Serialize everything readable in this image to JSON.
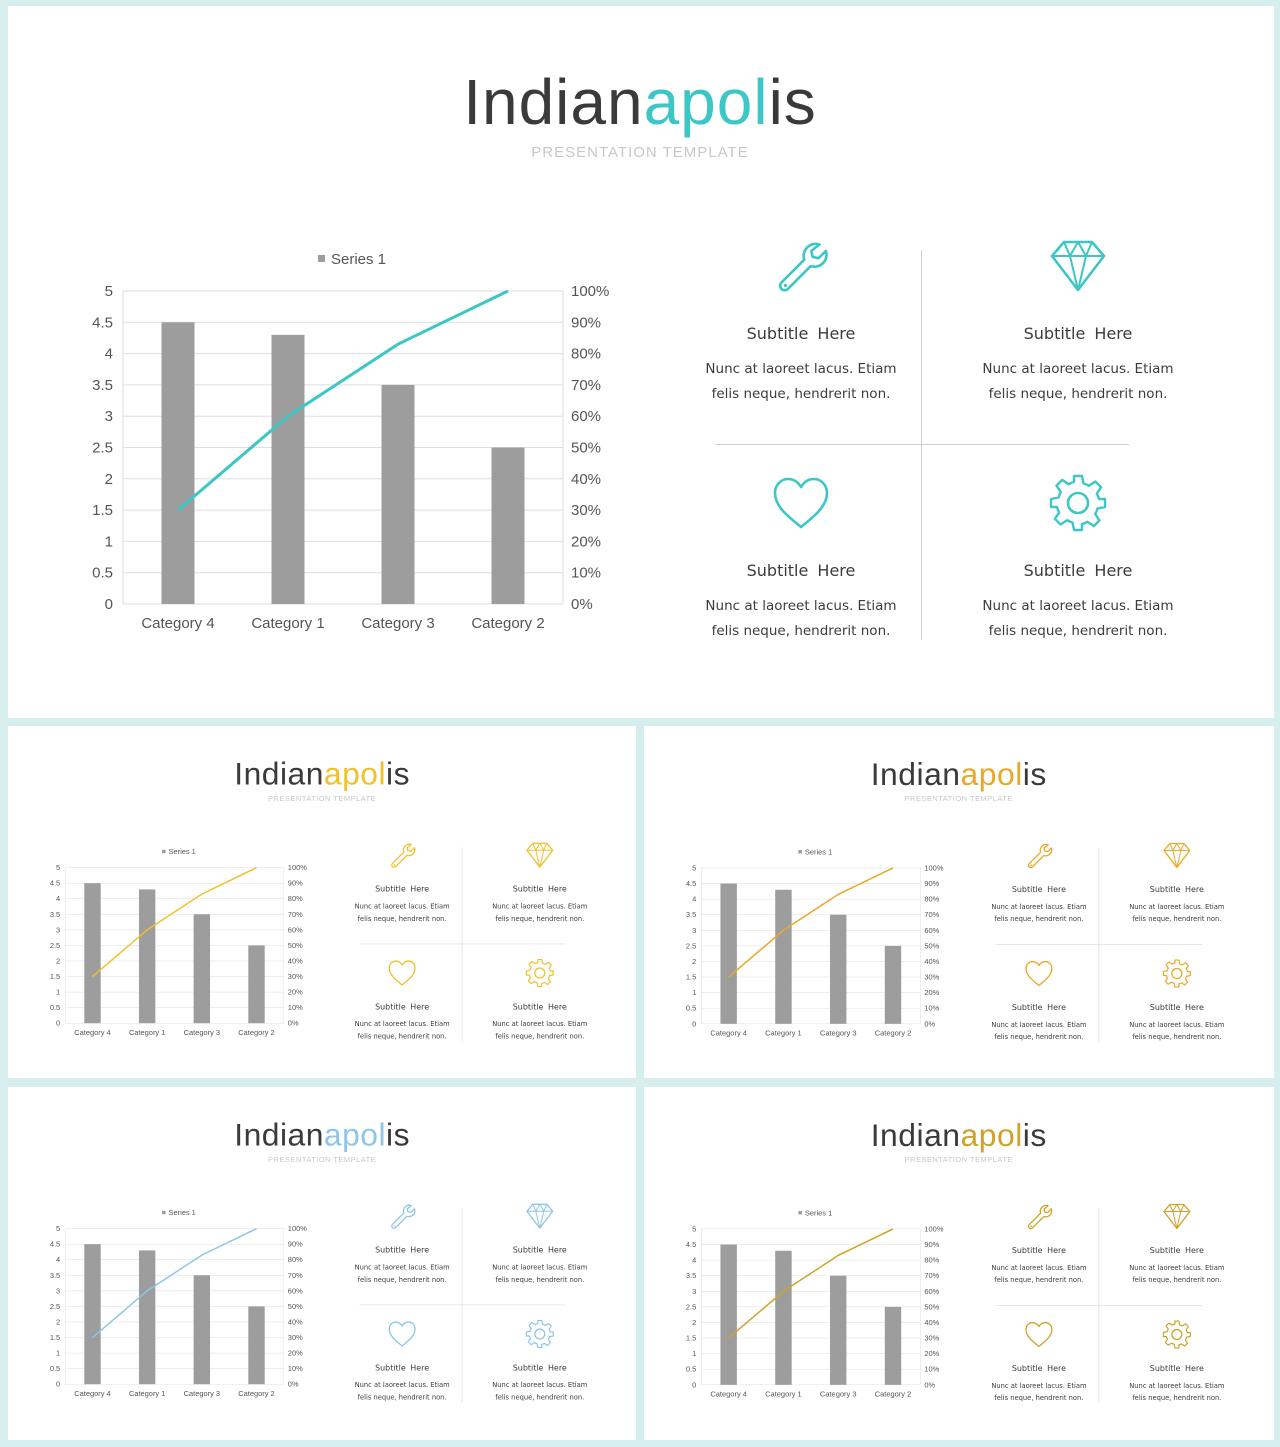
{
  "title_part1": "Indian",
  "title_part2": "apol",
  "title_part3": "is",
  "tagline": "PRESENTATION TEMPLATE",
  "chart_data": {
    "type": "bar",
    "categories": [
      "Category 4",
      "Category 1",
      "Category 3",
      "Category 2"
    ],
    "series": [
      {
        "name": "Series 1",
        "type": "bar",
        "values": [
          4.5,
          4.3,
          3.5,
          2.5
        ]
      },
      {
        "type": "line",
        "axis": "secondary",
        "values": [
          30,
          60,
          83,
          100
        ]
      }
    ],
    "legend": "top",
    "legend_label": "Series 1",
    "ylim": [
      0,
      5
    ],
    "y_ticks": [
      "0",
      "0.5",
      "1",
      "1.5",
      "2",
      "2.5",
      "3",
      "3.5",
      "4",
      "4.5",
      "5"
    ],
    "y2lim": [
      0,
      100
    ],
    "y2_ticks": [
      "0%",
      "10%",
      "20%",
      "30%",
      "40%",
      "50%",
      "60%",
      "70%",
      "80%",
      "90%",
      "100%"
    ],
    "grid": true,
    "bar_color": "#9d9d9d"
  },
  "features": [
    {
      "icon": "wrench-icon",
      "subtitle": "Subtitle Here",
      "text1": "Nunc at laoreet lacus. Etiam",
      "text2": "felis neque, hendrerit non."
    },
    {
      "icon": "diamond-icon",
      "subtitle": "Subtitle Here",
      "text1": "Nunc at laoreet lacus. Etiam",
      "text2": "felis neque, hendrerit non."
    },
    {
      "icon": "heart-icon",
      "subtitle": "Subtitle Here",
      "text1": "Nunc at laoreet lacus. Etiam",
      "text2": "felis neque, hendrerit non."
    },
    {
      "icon": "gear-icon",
      "subtitle": "Subtitle Here",
      "text1": "Nunc at laoreet lacus. Etiam",
      "text2": "felis neque, hendrerit non."
    }
  ],
  "variants": [
    {
      "name": "teal",
      "accent": "#3cc6c6"
    },
    {
      "name": "yellow",
      "accent": "#f2c02b"
    },
    {
      "name": "orange",
      "accent": "#e9a928"
    },
    {
      "name": "light-blue",
      "accent": "#8ec6e6"
    },
    {
      "name": "gold",
      "accent": "#cfa32a"
    }
  ]
}
